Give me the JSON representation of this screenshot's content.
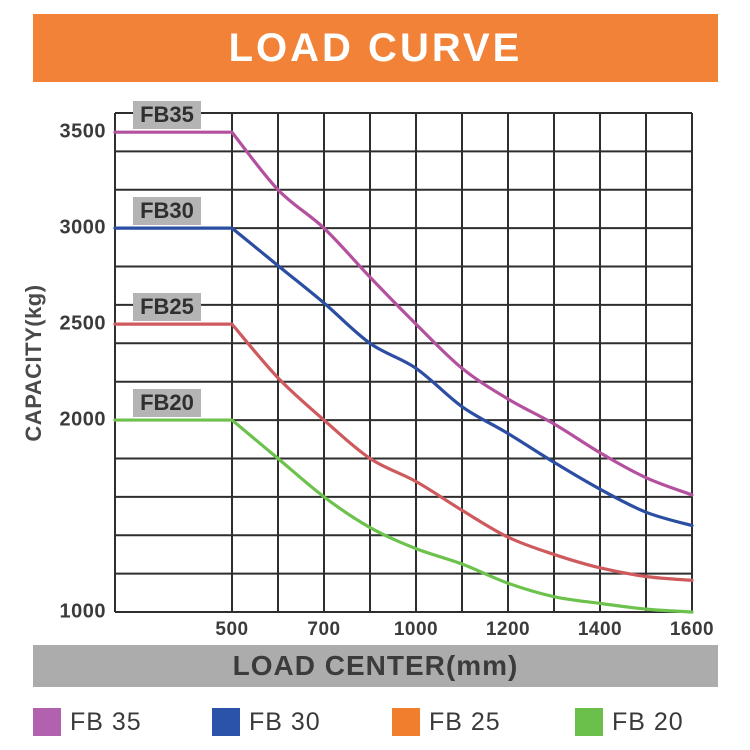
{
  "header": {
    "title": "LOAD CURVE",
    "bg_color": "#F18238",
    "text_color": "#FFFFFF"
  },
  "footer": {
    "bg_color": "#ACACAC"
  },
  "colors": {
    "grid": "#2E2E2E",
    "text_dark": "#3B3B3B",
    "curve_tag_bg": "#B4B4B4",
    "page_bg": "#FFFFFF"
  },
  "chart_data": {
    "type": "line",
    "title": "LOAD CURVE",
    "xlabel": "LOAD CENTER(mm)",
    "ylabel": "CAPACITY(kg)",
    "y_range": [
      1000,
      3600
    ],
    "y_grid_step_kg": 200,
    "grid": "on",
    "axis_note": "x axis has 11 gridline columns; labels sit on every second column; capacity is flat at rated value left of the 500mm column",
    "columns_mm": [
      500,
      600,
      700,
      850,
      1000,
      1100,
      1200,
      1300,
      1400,
      1500,
      1600
    ],
    "x_ticks": [
      {
        "label": "500",
        "col": 0
      },
      {
        "label": "700",
        "col": 2
      },
      {
        "label": "1000",
        "col": 4
      },
      {
        "label": "1200",
        "col": 6
      },
      {
        "label": "1400",
        "col": 8
      },
      {
        "label": "1600",
        "col": 10
      }
    ],
    "y_ticks": [
      {
        "label": "3500",
        "value": 3500
      },
      {
        "label": "3000",
        "value": 3000
      },
      {
        "label": "2500",
        "value": 2500
      },
      {
        "label": "2000",
        "value": 2000
      },
      {
        "label": "1000",
        "value": 1000
      }
    ],
    "series": [
      {
        "name": "FB35",
        "tag": "FB35",
        "color": "#B4519E",
        "rated_capacity_kg": 3500,
        "values": [
          3500,
          3200,
          3000,
          2745,
          2500,
          2270,
          2110,
          1980,
          1830,
          1700,
          1610
        ]
      },
      {
        "name": "FB30",
        "tag": "FB30",
        "color": "#2B4EA2",
        "rated_capacity_kg": 3000,
        "values": [
          3000,
          2805,
          2610,
          2400,
          2270,
          2070,
          1930,
          1780,
          1640,
          1520,
          1450
        ]
      },
      {
        "name": "FB25",
        "tag": "FB25",
        "color": "#CE5A5E",
        "rated_capacity_kg": 2500,
        "values": [
          2500,
          2220,
          2000,
          1800,
          1680,
          1530,
          1390,
          1300,
          1230,
          1185,
          1165
        ]
      },
      {
        "name": "FB20",
        "tag": "FB20",
        "color": "#6CC24C",
        "rated_capacity_kg": 2000,
        "values": [
          2000,
          1800,
          1600,
          1440,
          1330,
          1250,
          1150,
          1080,
          1045,
          1015,
          1000
        ]
      }
    ]
  },
  "legend": {
    "items": [
      {
        "label": "FB 35",
        "color": "#B161AE"
      },
      {
        "label": "FB 30",
        "color": "#2B53A7"
      },
      {
        "label": "FB 25",
        "color": "#F07E2D"
      },
      {
        "label": "FB 20",
        "color": "#6BBF4B"
      }
    ]
  }
}
